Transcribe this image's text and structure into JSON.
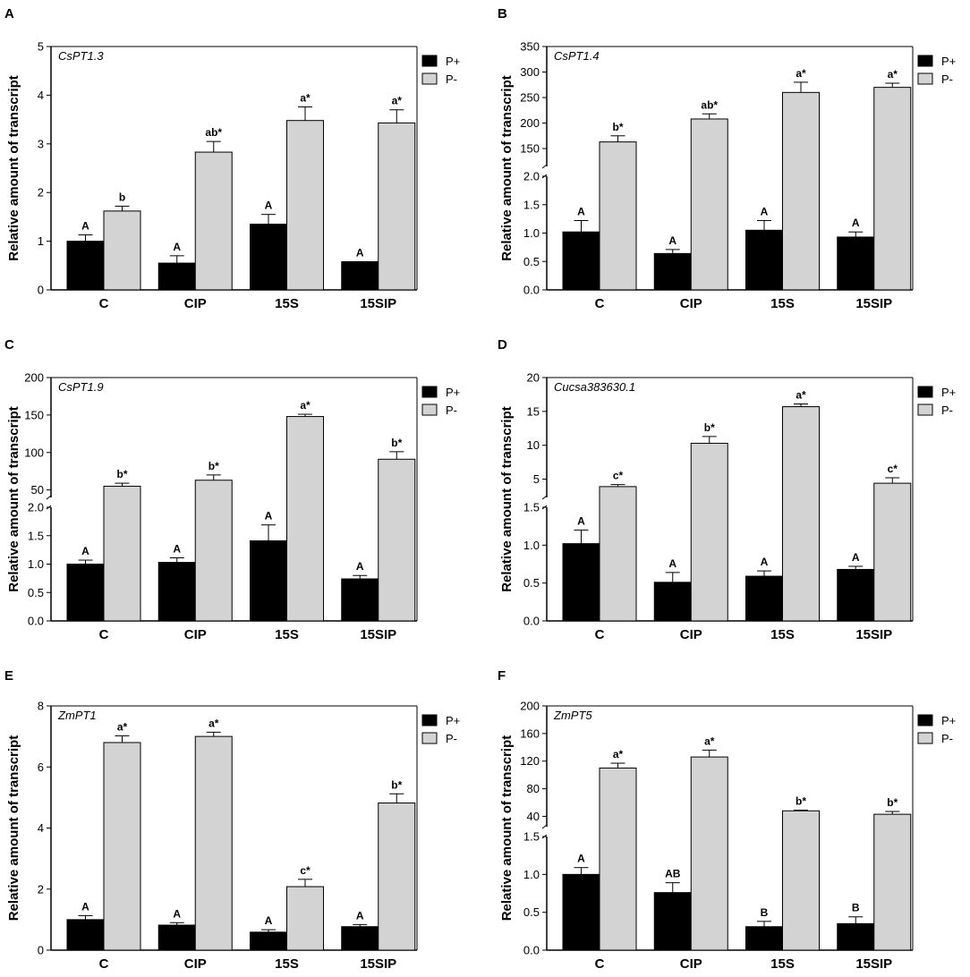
{
  "colors": {
    "p_plus": "#000000",
    "p_minus": "#d3d3d3",
    "axis": "#000000"
  },
  "legend": [
    "P+",
    "P-"
  ],
  "chart_data": [
    {
      "panel": "A",
      "type": "bar",
      "gene": "CsPT1.3",
      "ylabel": "Relative amount of transcript",
      "categories": [
        "C",
        "CIP",
        "15S",
        "15SIP"
      ],
      "segments": [
        {
          "ylim": [
            0,
            5
          ],
          "ticks": [
            "0",
            "1",
            "2",
            "3",
            "4",
            "5"
          ],
          "tick_values": [
            0,
            1,
            2,
            3,
            4,
            5
          ]
        }
      ],
      "series": [
        {
          "name": "P+",
          "values": [
            1.0,
            0.55,
            1.35,
            0.58
          ],
          "errors": [
            0.13,
            0.15,
            0.2,
            0.0
          ],
          "labels": [
            "A",
            "A",
            "A",
            "A"
          ]
        },
        {
          "name": "P-",
          "values": [
            1.62,
            2.83,
            3.48,
            3.43
          ],
          "errors": [
            0.1,
            0.22,
            0.28,
            0.27
          ],
          "labels": [
            "b",
            "ab*",
            "a*",
            "a*"
          ]
        }
      ]
    },
    {
      "panel": "B",
      "type": "bar",
      "gene": "CsPT1.4",
      "ylabel": "Relative amount of transcript",
      "categories": [
        "C",
        "CIP",
        "15S",
        "15SIP"
      ],
      "segments": [
        {
          "ylim": [
            0,
            2
          ],
          "ticks": [
            "0.0",
            "0.5",
            "1.0",
            "1.5",
            "2.0"
          ],
          "tick_values": [
            0,
            0.5,
            1,
            1.5,
            2
          ]
        },
        {
          "ylim": [
            115,
            350
          ],
          "ticks": [
            "150",
            "200",
            "250",
            "300",
            "350"
          ],
          "tick_values": [
            150,
            200,
            250,
            300,
            350
          ]
        }
      ],
      "series": [
        {
          "name": "P+",
          "values": [
            1.02,
            0.64,
            1.05,
            0.93
          ],
          "errors": [
            0.2,
            0.07,
            0.17,
            0.09
          ],
          "labels": [
            "A",
            "A",
            "A",
            "A"
          ]
        },
        {
          "name": "P-",
          "values": [
            163,
            208,
            260,
            270
          ],
          "errors": [
            12,
            10,
            20,
            8
          ],
          "labels": [
            "b*",
            "ab*",
            "a*",
            "a*"
          ]
        }
      ]
    },
    {
      "panel": "C",
      "type": "bar",
      "gene": "CsPT1.9",
      "ylabel": "Relative amount of transcript",
      "categories": [
        "C",
        "CIP",
        "15S",
        "15SIP"
      ],
      "segments": [
        {
          "ylim": [
            0,
            2
          ],
          "ticks": [
            "0.0",
            "0.5",
            "1.0",
            "1.5",
            "2.0"
          ],
          "tick_values": [
            0,
            0.5,
            1,
            1.5,
            2
          ]
        },
        {
          "ylim": [
            40,
            200
          ],
          "ticks": [
            "50",
            "100",
            "150",
            "200"
          ],
          "tick_values": [
            50,
            100,
            150,
            200
          ]
        }
      ],
      "series": [
        {
          "name": "P+",
          "values": [
            1.0,
            1.03,
            1.41,
            0.74
          ],
          "errors": [
            0.07,
            0.08,
            0.28,
            0.06
          ],
          "labels": [
            "A",
            "A",
            "A",
            "A"
          ]
        },
        {
          "name": "P-",
          "values": [
            55,
            63,
            148,
            91
          ],
          "errors": [
            4,
            7,
            3,
            10
          ],
          "labels": [
            "b*",
            "b*",
            "a*",
            "b*"
          ]
        }
      ]
    },
    {
      "panel": "D",
      "type": "bar",
      "gene": "Cucsa383630.1",
      "ylabel": "Relative amount of transcript",
      "categories": [
        "C",
        "CIP",
        "15S",
        "15SIP"
      ],
      "segments": [
        {
          "ylim": [
            0,
            1.5
          ],
          "ticks": [
            "0.0",
            "0.5",
            "1.0",
            "1.5"
          ],
          "tick_values": [
            0,
            0.5,
            1,
            1.5
          ]
        },
        {
          "ylim": [
            2.3,
            20
          ],
          "ticks": [
            "5",
            "10",
            "15",
            "20"
          ],
          "tick_values": [
            5,
            10,
            15,
            20
          ]
        }
      ],
      "series": [
        {
          "name": "P+",
          "values": [
            1.02,
            0.51,
            0.59,
            0.68
          ],
          "errors": [
            0.18,
            0.13,
            0.07,
            0.04
          ],
          "labels": [
            "A",
            "A",
            "A",
            "A"
          ]
        },
        {
          "name": "P-",
          "values": [
            3.9,
            10.3,
            15.7,
            4.4
          ],
          "errors": [
            0.3,
            1.0,
            0.4,
            0.8
          ],
          "labels": [
            "c*",
            "b*",
            "a*",
            "c*"
          ]
        }
      ]
    },
    {
      "panel": "E",
      "type": "bar",
      "gene": "ZmPT1",
      "ylabel": "Relative amount of transcript",
      "categories": [
        "C",
        "CIP",
        "15S",
        "15SIP"
      ],
      "segments": [
        {
          "ylim": [
            0,
            8
          ],
          "ticks": [
            "0",
            "2",
            "4",
            "6",
            "8"
          ],
          "tick_values": [
            0,
            2,
            4,
            6,
            8
          ]
        }
      ],
      "series": [
        {
          "name": "P+",
          "values": [
            1.0,
            0.82,
            0.59,
            0.77
          ],
          "errors": [
            0.13,
            0.08,
            0.08,
            0.07
          ],
          "labels": [
            "A",
            "A",
            "A",
            "A"
          ]
        },
        {
          "name": "P-",
          "values": [
            6.8,
            7.0,
            2.08,
            4.82
          ],
          "errors": [
            0.22,
            0.14,
            0.24,
            0.3
          ],
          "labels": [
            "a*",
            "a*",
            "c*",
            "b*"
          ]
        }
      ]
    },
    {
      "panel": "F",
      "type": "bar",
      "gene": "ZmPT5",
      "ylabel": "Relative amount of transcript",
      "categories": [
        "C",
        "CIP",
        "15S",
        "15SIP"
      ],
      "segments": [
        {
          "ylim": [
            0,
            1.5
          ],
          "ticks": [
            "0.0",
            "0.5",
            "1.0",
            "1.5"
          ],
          "tick_values": [
            0,
            0.5,
            1,
            1.5
          ]
        },
        {
          "ylim": [
            25,
            200
          ],
          "ticks": [
            "40",
            "80",
            "120",
            "160",
            "200"
          ],
          "tick_values": [
            40,
            80,
            120,
            160,
            200
          ]
        }
      ],
      "series": [
        {
          "name": "P+",
          "values": [
            1.0,
            0.76,
            0.31,
            0.35
          ],
          "errors": [
            0.09,
            0.13,
            0.07,
            0.09
          ],
          "labels": [
            "A",
            "AB",
            "B",
            "B"
          ]
        },
        {
          "name": "P-",
          "values": [
            110,
            126,
            48,
            43
          ],
          "errors": [
            7,
            10,
            1,
            4
          ],
          "labels": [
            "a*",
            "a*",
            "b*",
            "b*"
          ]
        }
      ]
    }
  ]
}
